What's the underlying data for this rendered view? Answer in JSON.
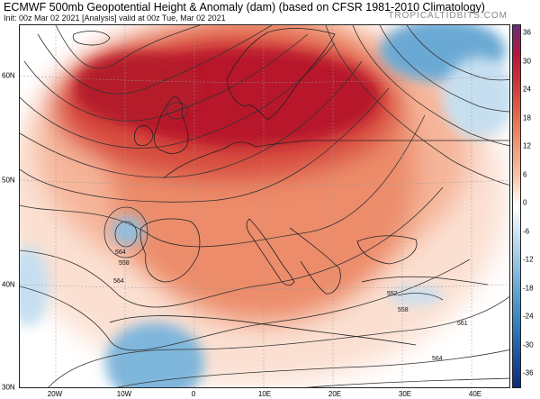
{
  "header": {
    "title": "ECMWF 500mb Geopotential Height & Anomaly (dam) (based on CFSR 1981-2010 Climatology)",
    "subtitle": "Init: 00z Mar 02 2021   [Analysis]  valid at 00z Tue, Mar 02 2021",
    "credit": "TROPICALTIDBITS.COM"
  },
  "map": {
    "lat_labels": [
      "60N",
      "50N",
      "40N",
      "30N"
    ],
    "lon_labels": [
      "20W",
      "10W",
      "0",
      "10E",
      "20E",
      "30E",
      "40E"
    ],
    "contour_labels": [
      "564",
      "558",
      "564",
      "552",
      "558",
      "564",
      "561"
    ],
    "colors": {
      "positive_strong": "#b8122a",
      "positive_mid": "#e8785a",
      "positive_weak": "#f8cdb8",
      "negative_weak": "#c6dff0",
      "negative_mid": "#6aa9d4",
      "contour": "#333333",
      "coastline": "#222222"
    }
  },
  "colorbar": {
    "ticks": [
      "36",
      "30",
      "24",
      "18",
      "12",
      "6",
      "0",
      "-6",
      "-12",
      "-18",
      "-24",
      "-30",
      "-36"
    ],
    "colors": [
      "#6b2b7a",
      "#b6163d",
      "#cf3a3a",
      "#e36a4a",
      "#f29a73",
      "#f8c4a8",
      "#ffffff",
      "#c6dff0",
      "#8fc0e2",
      "#559fd0",
      "#2d7dbf",
      "#1a52a0",
      "#0d2a7a"
    ]
  }
}
